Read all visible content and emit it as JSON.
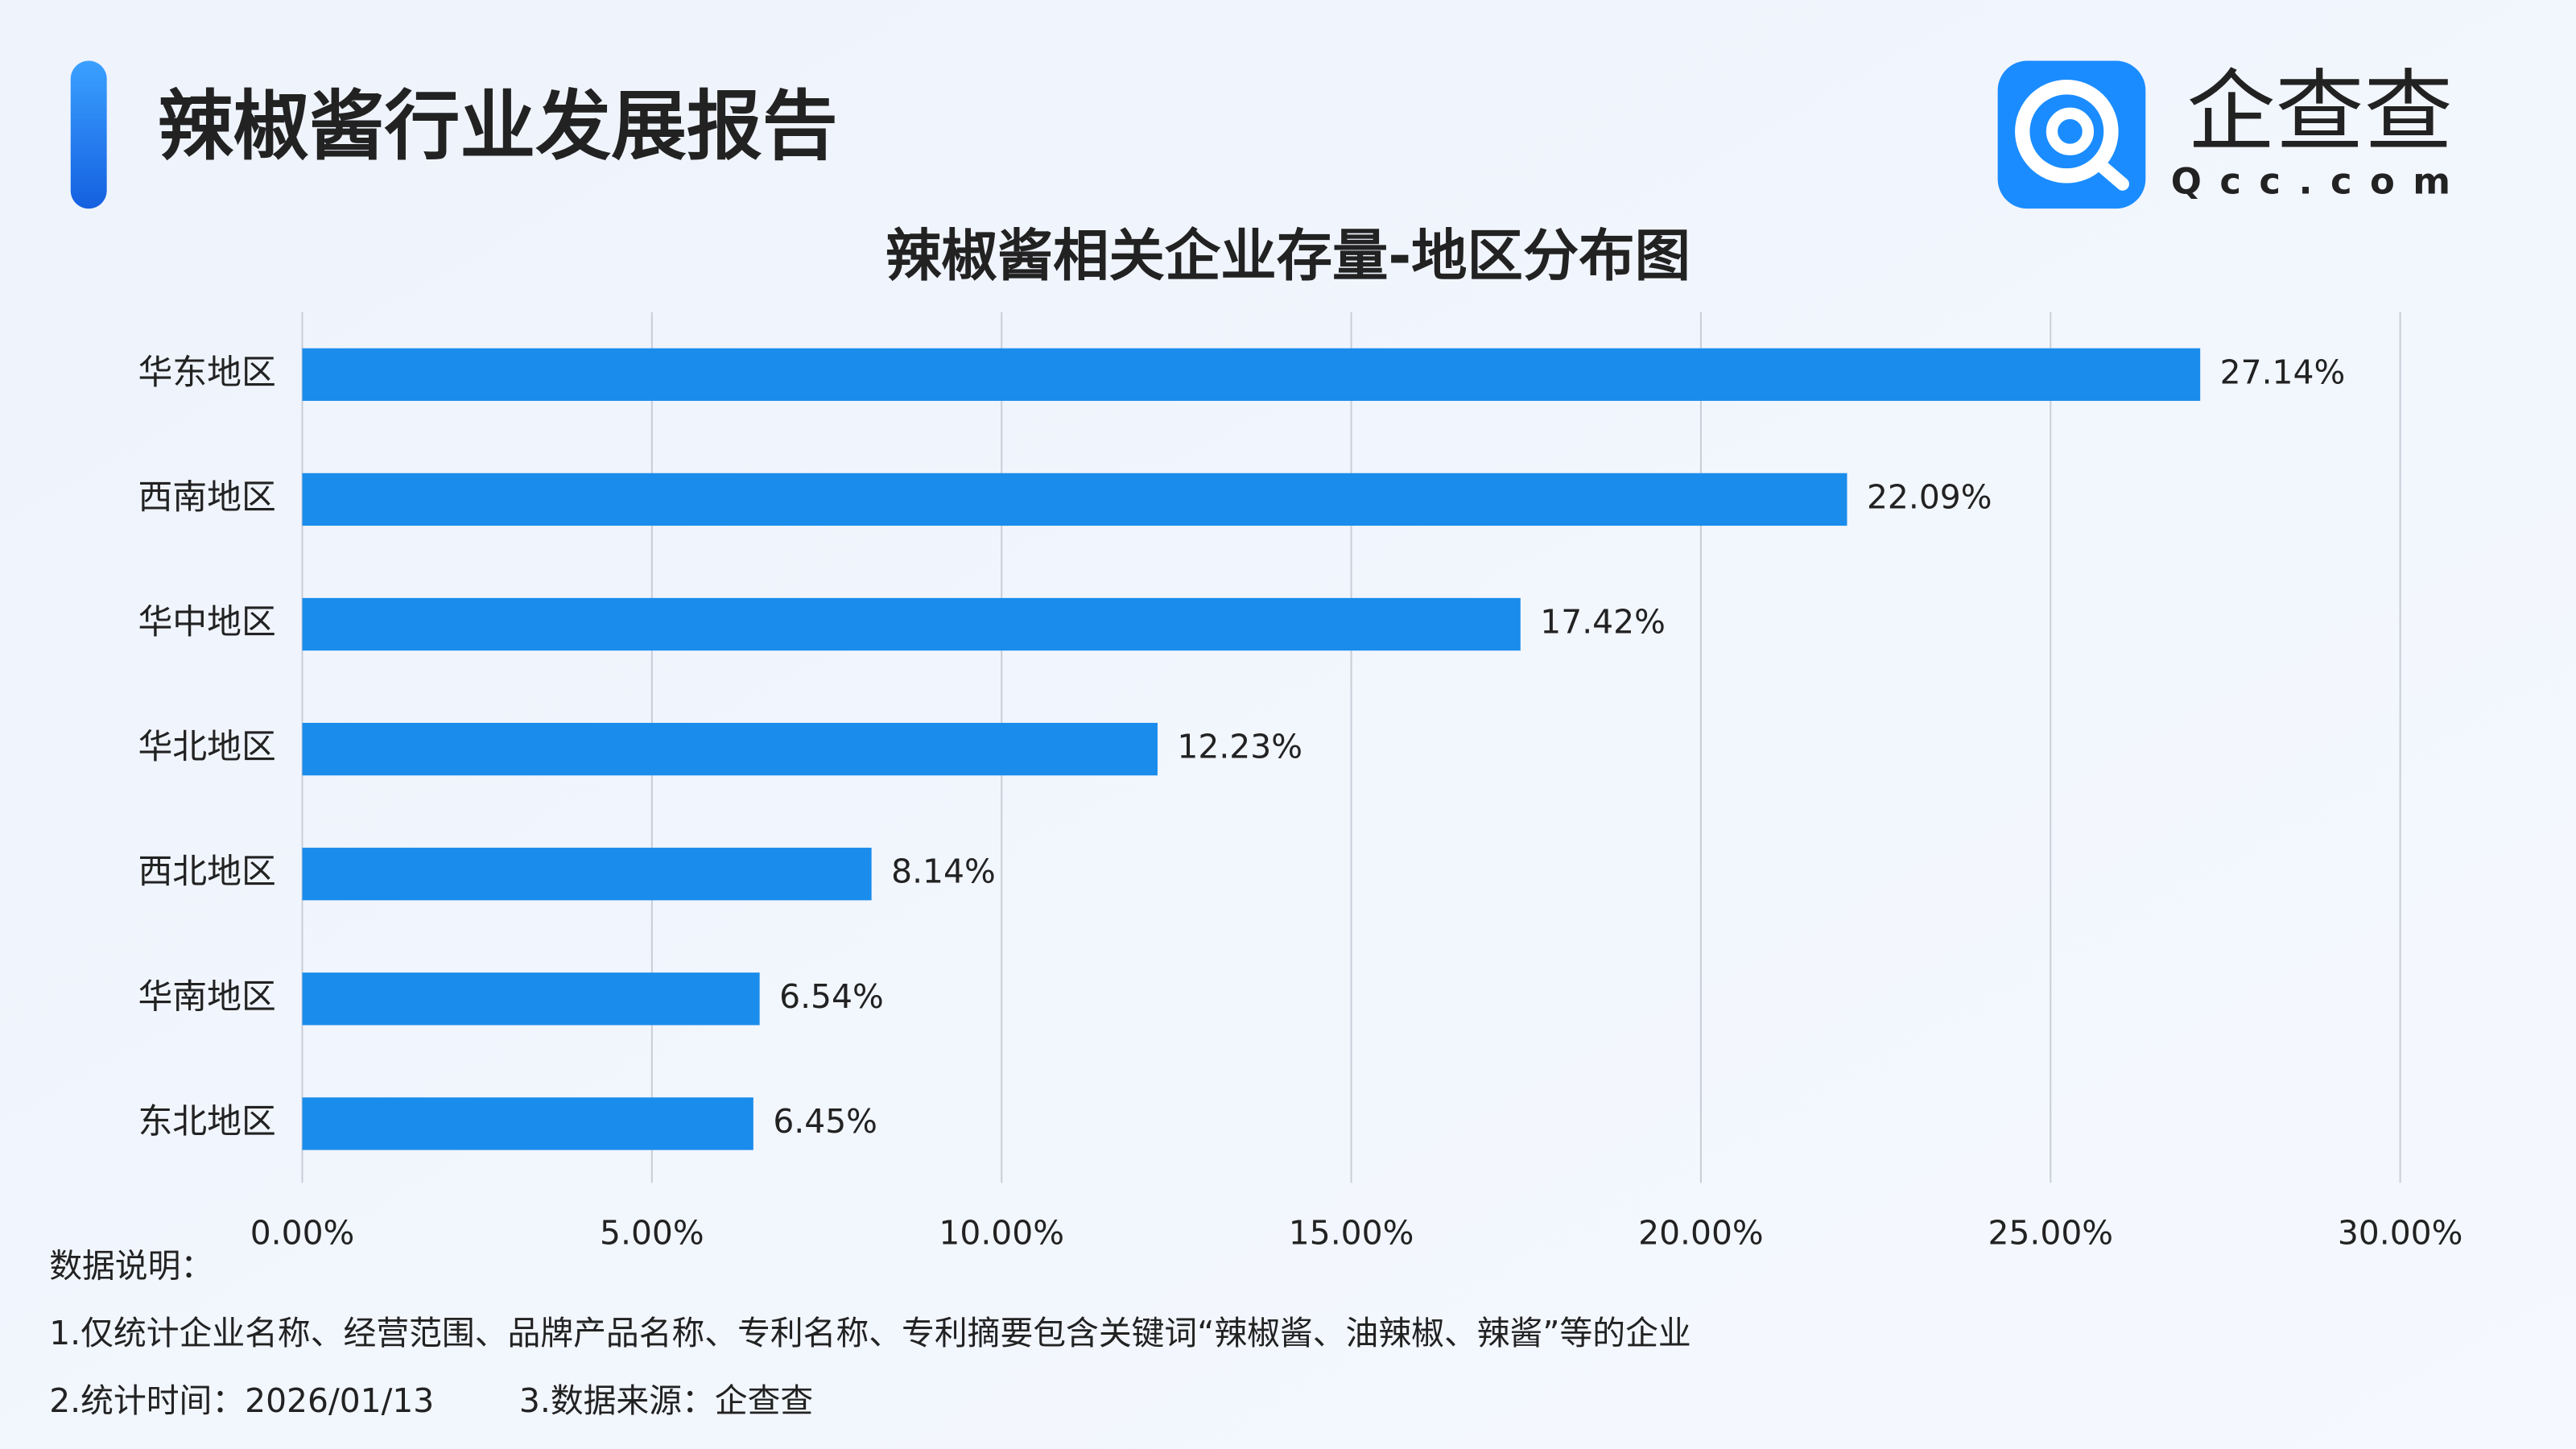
{
  "header": {
    "title": "辣椒酱行业发展报告",
    "logo": {
      "name": "企查查",
      "domain": "Qcc.com"
    }
  },
  "chart_data": {
    "type": "bar",
    "orientation": "horizontal",
    "title": "辣椒酱相关企业存量-地区分布图",
    "categories": [
      "华东地区",
      "西南地区",
      "华中地区",
      "华北地区",
      "西北地区",
      "华南地区",
      "东北地区"
    ],
    "values": [
      27.14,
      22.09,
      17.42,
      12.23,
      8.14,
      6.54,
      6.45
    ],
    "value_labels": [
      "27.14%",
      "22.09%",
      "17.42%",
      "12.23%",
      "8.14%",
      "6.54%",
      "6.45%"
    ],
    "color": "#1a8ceb",
    "xlim": [
      0,
      30
    ],
    "xticks": [
      {
        "value": 0,
        "label": "0.00%"
      },
      {
        "value": 5,
        "label": "5.00%"
      },
      {
        "value": 10,
        "label": "10.00%"
      },
      {
        "value": 15,
        "label": "15.00%"
      },
      {
        "value": 20,
        "label": "20.00%"
      },
      {
        "value": 25,
        "label": "25.00%"
      },
      {
        "value": 30,
        "label": "30.00%"
      }
    ],
    "grid": true
  },
  "notes": {
    "heading": "数据说明：",
    "items": [
      "1.仅统计企业名称、经营范围、品牌产品名称、专利名称、专利摘要包含关键词“辣椒酱、油辣椒、辣酱”等的企业",
      "2.统计时间：2026/01/13",
      "3.数据来源：企查查"
    ]
  }
}
